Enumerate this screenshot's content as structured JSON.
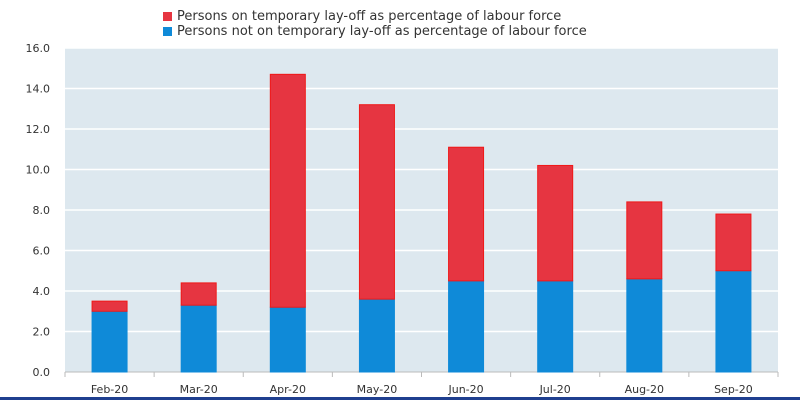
{
  "chart_data": {
    "type": "bar",
    "stacked": true,
    "categories": [
      "Feb-20",
      "Mar-20",
      "Apr-20",
      "May-20",
      "Jun-20",
      "Jul-20",
      "Aug-20",
      "Sep-20"
    ],
    "series": [
      {
        "name": "Persons not on temporary lay-off as percentage of labour force",
        "color": "#0f8ad8",
        "values": [
          3.0,
          3.3,
          3.2,
          3.6,
          4.5,
          4.5,
          4.6,
          5.0
        ]
      },
      {
        "name": "Persons on temporary lay-off as percentage of labour force",
        "color": "#e63541",
        "values": [
          0.5,
          1.1,
          11.5,
          9.6,
          6.6,
          5.7,
          3.8,
          2.8
        ]
      }
    ],
    "ylim": [
      0,
      16
    ],
    "yticks": [
      "0.0",
      "2.0",
      "4.0",
      "6.0",
      "8.0",
      "10.0",
      "12.0",
      "14.0",
      "16.0"
    ],
    "grid": true,
    "legend": "top",
    "background": "#dde8ef"
  }
}
